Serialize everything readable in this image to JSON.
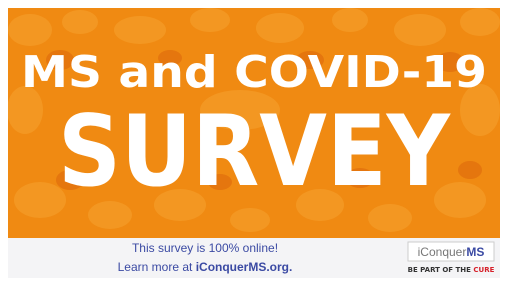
{
  "header": {
    "line1": "MS and COVID-19",
    "line2": "SURVEY"
  },
  "footer": {
    "line1": "This survey is 100% online!",
    "line2_prefix": "Learn more at",
    "link": "iConquerMS.org."
  },
  "logo": {
    "name": "iConquer",
    "suffix": "MS",
    "tagline_prefix": "BE PART OF THE",
    "tagline_highlight": "CURE"
  }
}
